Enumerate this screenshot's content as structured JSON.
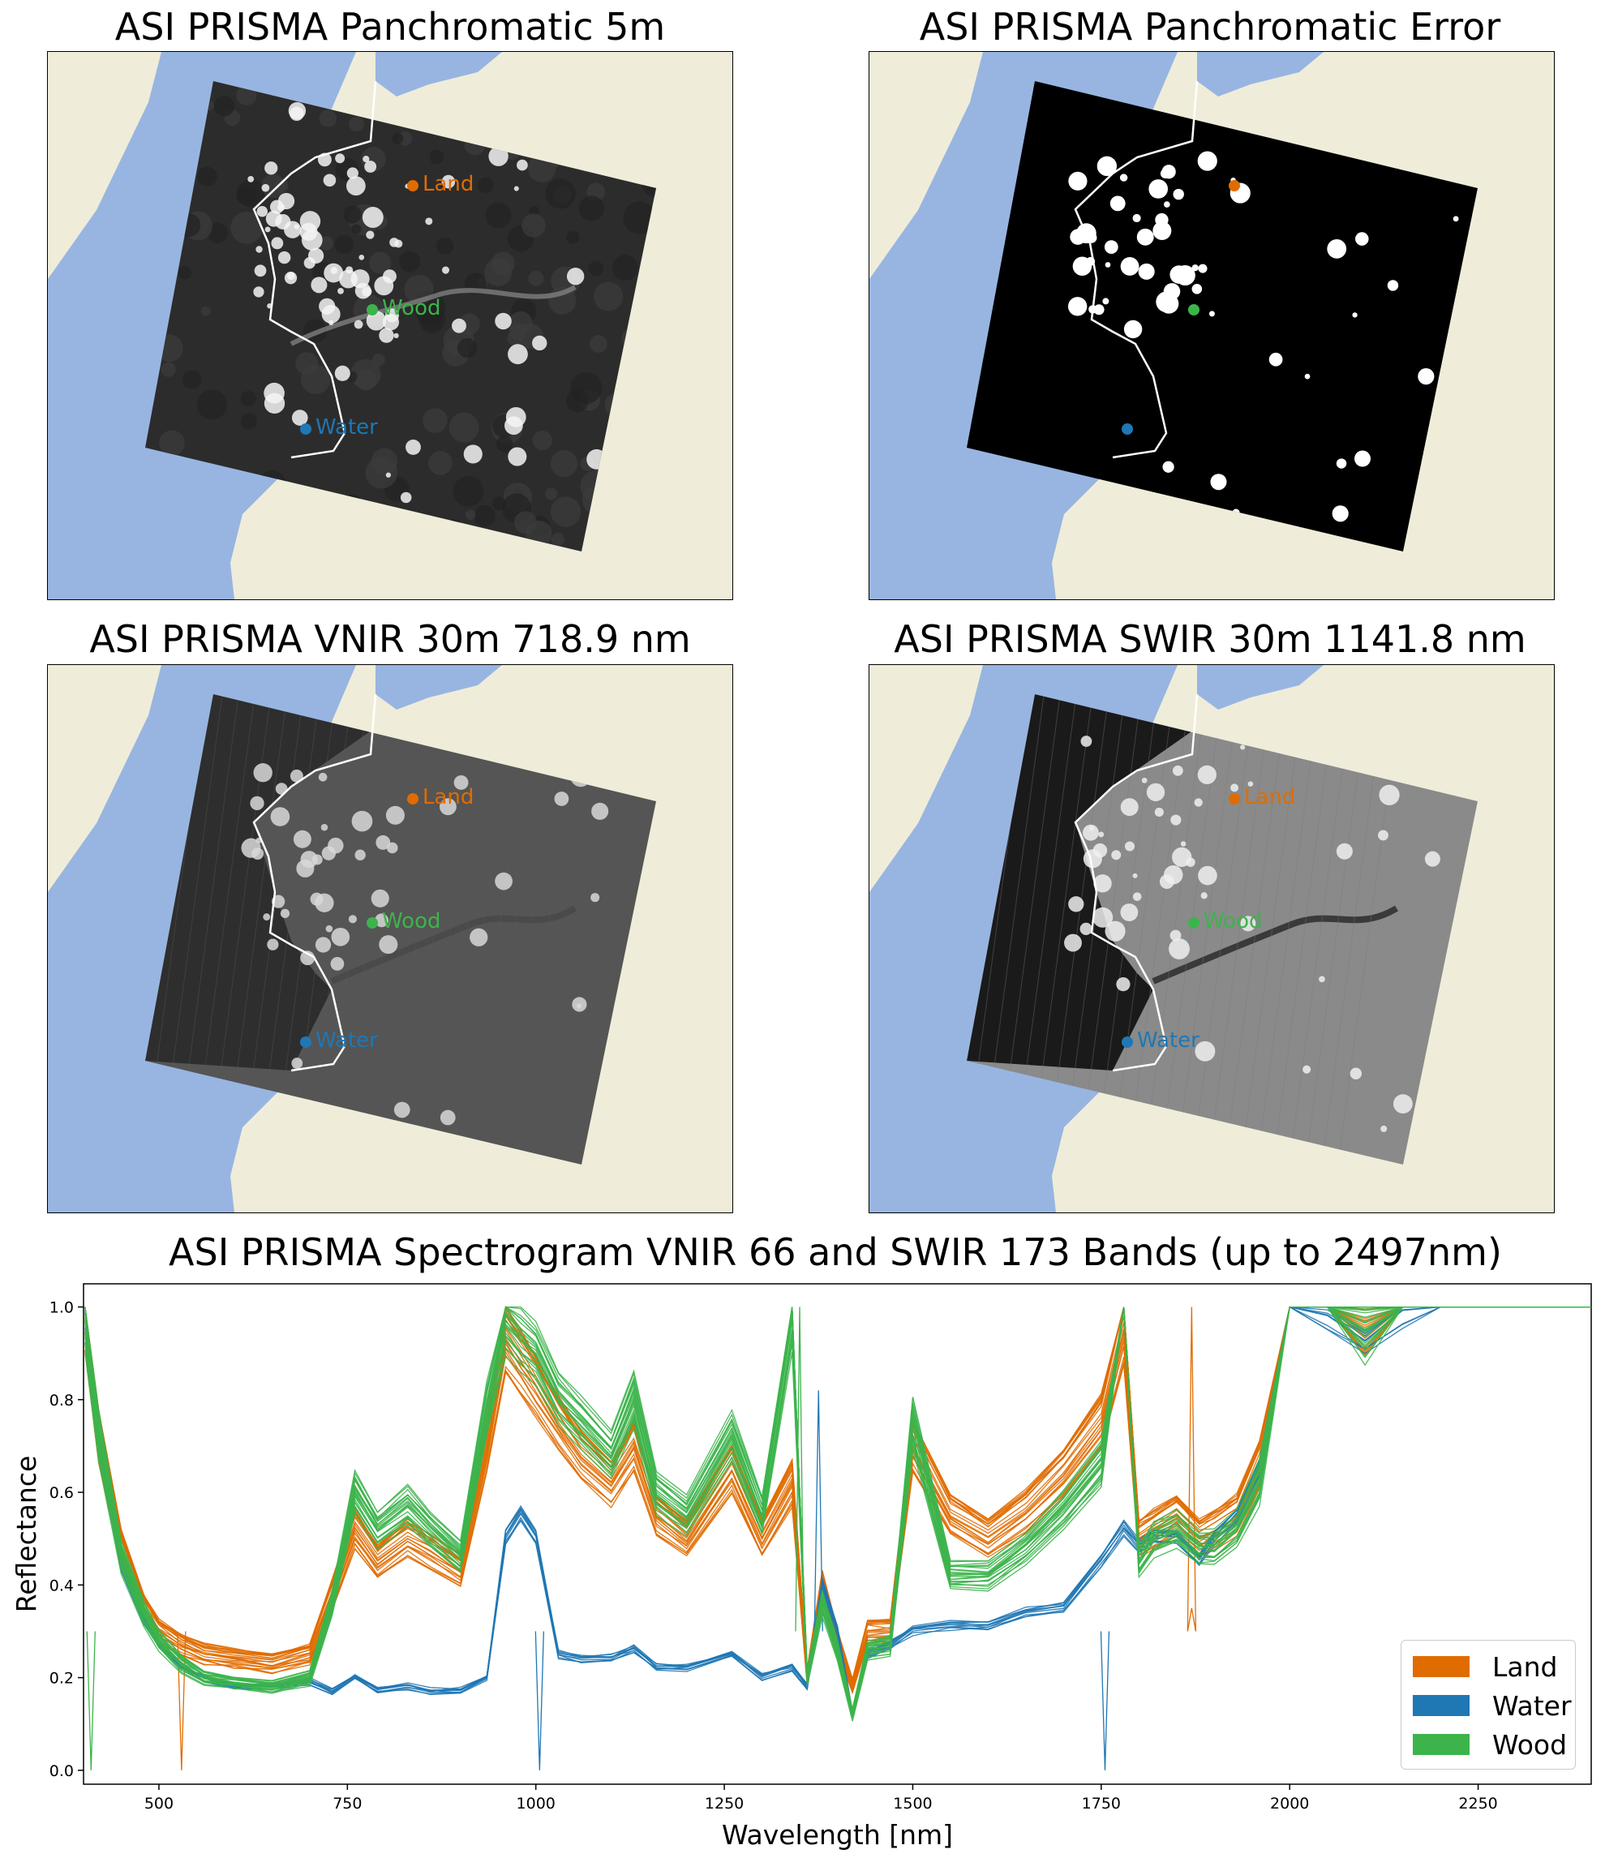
{
  "panels": [
    {
      "title": "ASI PRISMA Panchromatic 5m",
      "style": "pan"
    },
    {
      "title": "ASI PRISMA Panchromatic Error",
      "style": "error"
    },
    {
      "title": "ASI PRISMA VNIR 30m 718.9 nm",
      "style": "vnir"
    },
    {
      "title": "ASI PRISMA SWIR 30m 1141.8 nm",
      "style": "swir"
    }
  ],
  "points": [
    {
      "label": "Land",
      "color": "#e06c00"
    },
    {
      "label": "Wood",
      "color": "#3cb44b"
    },
    {
      "label": "Water",
      "color": "#1f77b4"
    }
  ],
  "map_colors": {
    "land": "#efedd9",
    "water": "#98b5e1"
  },
  "chart_data": {
    "type": "line",
    "title": "ASI PRISMA Spectrogram VNIR 66 and SWIR 173 Bands (up to 2497nm)",
    "xlabel": "Wavelength [nm]",
    "ylabel": "Reflectance",
    "xlim": [
      400,
      2400
    ],
    "ylim": [
      -0.03,
      1.05
    ],
    "xticks": [
      500,
      750,
      1000,
      1250,
      1500,
      1750,
      2000,
      2250
    ],
    "yticks": [
      0.0,
      0.2,
      0.4,
      0.6,
      0.8,
      1.0
    ],
    "legend_position": "lower-right",
    "series": [
      {
        "name": "Land",
        "color": "#e06c00",
        "x": [
          402,
          420,
          450,
          480,
          500,
          530,
          560,
          600,
          650,
          700,
          730,
          760,
          790,
          830,
          860,
          900,
          935,
          960,
          980,
          1000,
          1030,
          1060,
          1100,
          1130,
          1160,
          1200,
          1260,
          1300,
          1340,
          1360,
          1380,
          1400,
          1420,
          1440,
          1470,
          1500,
          1550,
          1600,
          1650,
          1700,
          1750,
          1780,
          1800,
          1820,
          1850,
          1880,
          1900,
          1930,
          1960,
          2000,
          2050,
          2100,
          2150,
          2200,
          2400
        ],
        "y": [
          0.98,
          0.72,
          0.48,
          0.35,
          0.3,
          0.27,
          0.25,
          0.24,
          0.23,
          0.25,
          0.38,
          0.52,
          0.45,
          0.5,
          0.47,
          0.43,
          0.7,
          0.93,
          0.88,
          0.83,
          0.75,
          0.68,
          0.62,
          0.7,
          0.55,
          0.5,
          0.65,
          0.5,
          0.62,
          0.2,
          0.4,
          0.28,
          0.18,
          0.3,
          0.3,
          0.7,
          0.55,
          0.5,
          0.56,
          0.64,
          0.75,
          0.95,
          0.5,
          0.52,
          0.55,
          0.5,
          0.52,
          0.55,
          0.66,
          1.0,
          1.0,
          0.97,
          1.0,
          1.0,
          1.0
        ],
        "spikes": [
          [
            530,
            0.0
          ],
          [
            1870,
            0.35
          ],
          [
            1870,
            1.0
          ]
        ]
      },
      {
        "name": "Water",
        "color": "#1f77b4",
        "x": [
          402,
          420,
          450,
          480,
          500,
          530,
          560,
          600,
          650,
          700,
          730,
          760,
          790,
          830,
          860,
          900,
          935,
          960,
          980,
          1000,
          1030,
          1060,
          1100,
          1130,
          1160,
          1200,
          1260,
          1300,
          1340,
          1360,
          1380,
          1400,
          1420,
          1440,
          1470,
          1500,
          1550,
          1600,
          1650,
          1700,
          1750,
          1780,
          1800,
          1820,
          1850,
          1880,
          1900,
          1930,
          1960,
          2000,
          2050,
          2100,
          2150,
          2200,
          2400
        ],
        "y": [
          0.98,
          0.7,
          0.44,
          0.32,
          0.27,
          0.22,
          0.2,
          0.18,
          0.18,
          0.19,
          0.17,
          0.2,
          0.17,
          0.18,
          0.17,
          0.17,
          0.2,
          0.5,
          0.55,
          0.5,
          0.25,
          0.24,
          0.24,
          0.26,
          0.22,
          0.22,
          0.25,
          0.2,
          0.22,
          0.18,
          0.4,
          0.3,
          0.12,
          0.25,
          0.27,
          0.3,
          0.31,
          0.31,
          0.34,
          0.35,
          0.45,
          0.52,
          0.48,
          0.5,
          0.5,
          0.45,
          0.5,
          0.55,
          0.65,
          1.0,
          0.97,
          0.92,
          0.98,
          1.0,
          1.0
        ],
        "spikes": [
          [
            1005,
            0.0
          ],
          [
            1375,
            0.82
          ],
          [
            1755,
            0.0
          ]
        ]
      },
      {
        "name": "Wood",
        "color": "#3cb44b",
        "x": [
          402,
          420,
          450,
          480,
          500,
          530,
          560,
          600,
          650,
          700,
          730,
          760,
          790,
          830,
          860,
          900,
          935,
          960,
          980,
          1000,
          1030,
          1060,
          1100,
          1130,
          1160,
          1200,
          1260,
          1300,
          1340,
          1360,
          1380,
          1400,
          1420,
          1440,
          1470,
          1500,
          1550,
          1600,
          1650,
          1700,
          1750,
          1780,
          1800,
          1820,
          1850,
          1880,
          1900,
          1930,
          1960,
          2000,
          2050,
          2100,
          2150,
          2200,
          2400
        ],
        "y": [
          0.98,
          0.72,
          0.46,
          0.34,
          0.28,
          0.23,
          0.2,
          0.19,
          0.18,
          0.2,
          0.36,
          0.6,
          0.52,
          0.57,
          0.52,
          0.46,
          0.78,
          0.97,
          0.93,
          0.9,
          0.8,
          0.75,
          0.68,
          0.8,
          0.6,
          0.55,
          0.72,
          0.55,
          0.98,
          0.2,
          0.36,
          0.26,
          0.12,
          0.26,
          0.27,
          0.75,
          0.42,
          0.42,
          0.48,
          0.56,
          0.66,
          1.0,
          0.45,
          0.5,
          0.52,
          0.48,
          0.48,
          0.52,
          0.62,
          1.0,
          1.0,
          0.95,
          1.0,
          1.0,
          1.0
        ],
        "spikes": [
          [
            410,
            0.0
          ],
          [
            1350,
            1.0
          ]
        ]
      }
    ]
  }
}
